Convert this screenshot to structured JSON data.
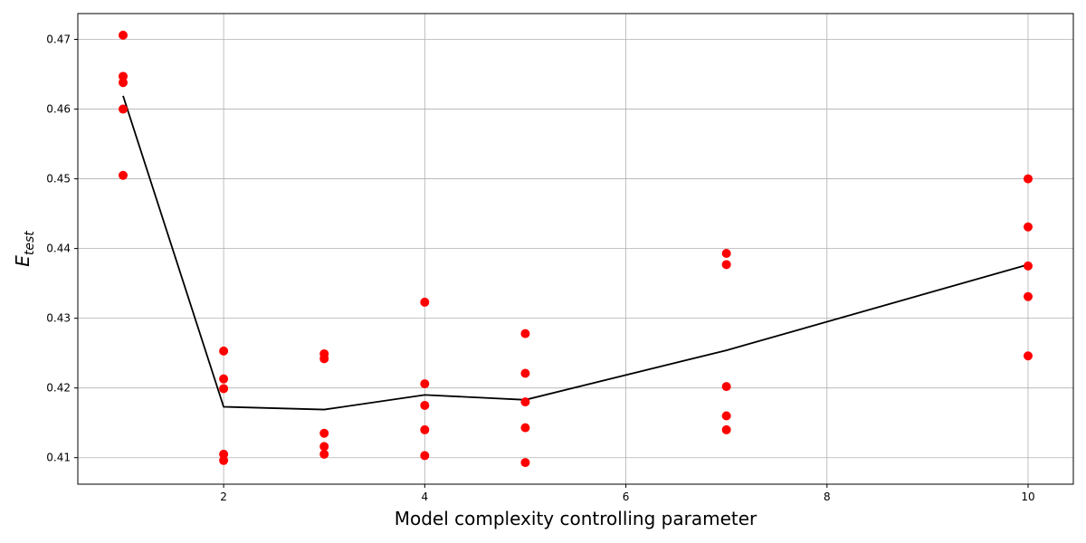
{
  "chart_data": {
    "type": "scatter",
    "title": "",
    "xlabel": "Model complexity controlling parameter",
    "ylabel_main": "E",
    "ylabel_sub": "test",
    "xlim": [
      0.55,
      10.45
    ],
    "ylim": [
      0.4062,
      0.4737
    ],
    "xticks": [
      2,
      4,
      6,
      8,
      10
    ],
    "yticks": [
      0.41,
      0.42,
      0.43,
      0.44,
      0.45,
      0.46,
      0.47
    ],
    "grid": true,
    "colors": {
      "points": "#ff0000",
      "line": "#000000",
      "grid": "#b0b0b0"
    },
    "series": [
      {
        "kind": "points",
        "x": [
          1,
          1,
          1,
          1,
          1,
          2,
          2,
          2,
          2,
          2,
          3,
          3,
          3,
          3,
          3,
          4,
          4,
          4,
          4,
          4,
          5,
          5,
          5,
          5,
          5,
          7,
          7,
          7,
          7,
          7,
          10,
          10,
          10,
          10,
          10
        ],
        "y": [
          0.4706,
          0.4647,
          0.4638,
          0.46,
          0.4505,
          0.4253,
          0.4213,
          0.4199,
          0.4105,
          0.4096,
          0.4249,
          0.4242,
          0.4135,
          0.4116,
          0.4105,
          0.4323,
          0.4206,
          0.4175,
          0.414,
          0.4103,
          0.4278,
          0.4221,
          0.418,
          0.4143,
          0.4093,
          0.4393,
          0.4377,
          0.4202,
          0.416,
          0.414,
          0.45,
          0.4431,
          0.4375,
          0.4331,
          0.4246
        ]
      },
      {
        "kind": "line",
        "x": [
          1,
          2,
          3,
          4,
          5,
          7,
          10
        ],
        "y": [
          0.4619,
          0.4173,
          0.4169,
          0.419,
          0.4183,
          0.4254,
          0.4377
        ]
      }
    ]
  }
}
